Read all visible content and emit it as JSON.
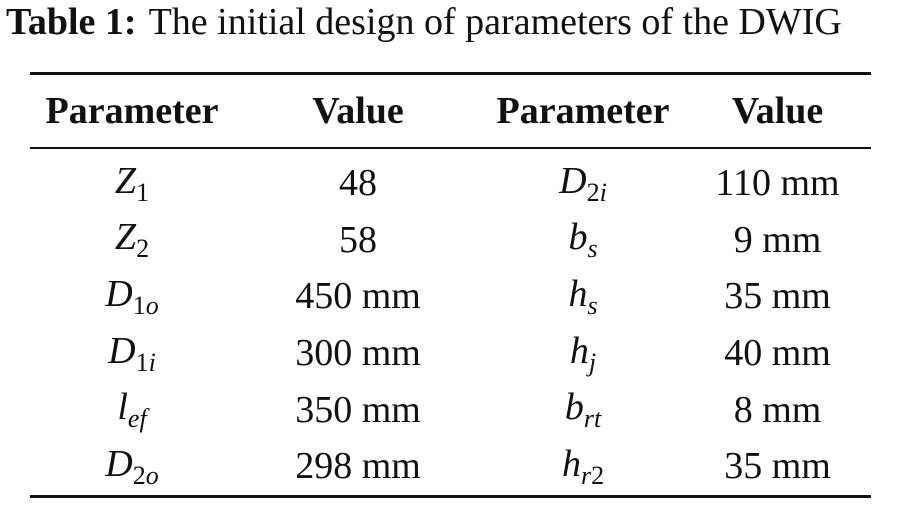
{
  "caption": {
    "label": "Table 1:",
    "text": "The initial design of parameters of the DWIG"
  },
  "table": {
    "header": [
      "Parameter",
      "Value",
      "Parameter",
      "Value"
    ],
    "rows": [
      [
        {
          "base": "Z",
          "sub": "1"
        },
        "48",
        {
          "base": "D",
          "sub": "2i"
        },
        "110 mm"
      ],
      [
        {
          "base": "Z",
          "sub": "2"
        },
        "58",
        {
          "base": "b",
          "sub": "s"
        },
        "9 mm"
      ],
      [
        {
          "base": "D",
          "sub": "1o"
        },
        "450 mm",
        {
          "base": "h",
          "sub": "s"
        },
        "35 mm"
      ],
      [
        {
          "base": "D",
          "sub": "1i"
        },
        "300 mm",
        {
          "base": "h",
          "sub": "j"
        },
        "40 mm"
      ],
      [
        {
          "base": "l",
          "sub": "ef"
        },
        "350 mm",
        {
          "base": "b",
          "sub": "rt"
        },
        "8 mm"
      ],
      [
        {
          "base": "D",
          "sub": "2o"
        },
        "298 mm",
        {
          "base": "h",
          "sub": "r2"
        },
        "35 mm"
      ]
    ]
  }
}
